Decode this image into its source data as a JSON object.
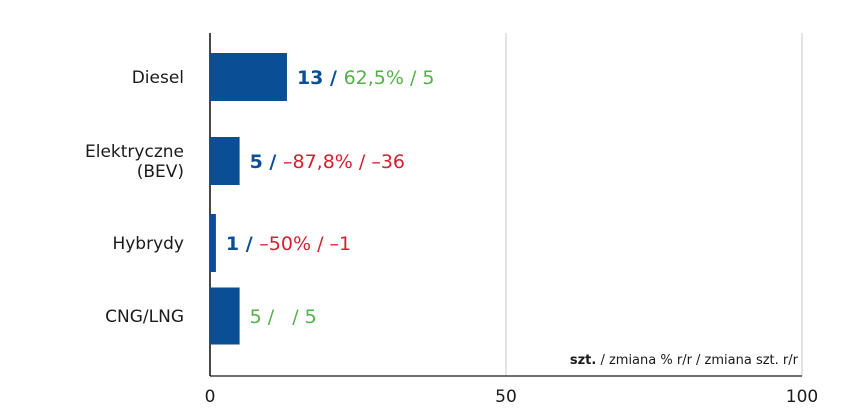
{
  "chart_data": {
    "type": "bar",
    "orientation": "horizontal",
    "categories": [
      "Diesel",
      "Elektryczne (BEV)",
      "Hybrydy",
      "CNG/LNG"
    ],
    "category_lines": [
      [
        "Diesel"
      ],
      [
        "Elektryczne",
        "(BEV)"
      ],
      [
        "Hybrydy"
      ],
      [
        "CNG/LNG"
      ]
    ],
    "values": [
      13,
      5,
      1,
      5
    ],
    "xlim": [
      0,
      100
    ],
    "xticks": [
      0,
      50,
      100
    ],
    "grid": true,
    "bar_color": "#0a4f96",
    "annotations": [
      {
        "parts": [
          {
            "text": "13 / ",
            "color": "#0a4f96",
            "bold": true
          },
          {
            "text": "62,5% / 5",
            "color": "#55b04a",
            "bold": false
          }
        ]
      },
      {
        "parts": [
          {
            "text": "5 / ",
            "color": "#0a4f96",
            "bold": true
          },
          {
            "text": "–87,8% / –36",
            "color": "#d42030",
            "bold": false
          }
        ]
      },
      {
        "parts": [
          {
            "text": "1 / ",
            "color": "#0a4f96",
            "bold": true
          },
          {
            "text": "–50% / –1",
            "color": "#d42030",
            "bold": false
          }
        ]
      },
      {
        "parts": [
          {
            "text": "5 /   / 5",
            "color": "#55b04a",
            "bold": false
          }
        ]
      }
    ],
    "legend": {
      "bold": "szt.",
      "rest": " / zmiana % r/r / zmiana szt. r/r"
    },
    "colors": {
      "bar": "#0a4f96",
      "positive": "#55b04a",
      "negative": "#d42030",
      "grid": "#c8c8c8",
      "axis": "#1a1a1a"
    }
  }
}
